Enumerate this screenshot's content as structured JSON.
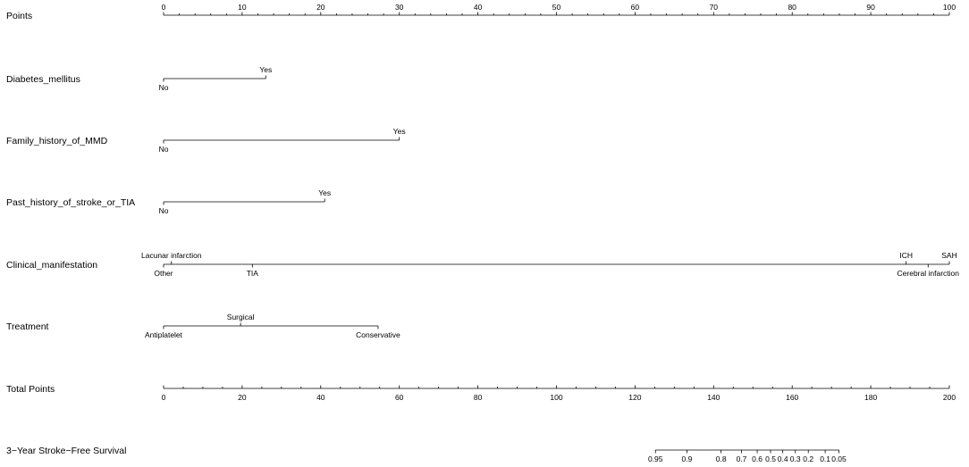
{
  "chart_data": {
    "type": "nomogram",
    "points_scale": {
      "label": "Points",
      "range": [
        0,
        100
      ],
      "tick_labels": [
        "0",
        "10",
        "20",
        "30",
        "40",
        "50",
        "60",
        "70",
        "80",
        "90",
        "100"
      ]
    },
    "variables": [
      {
        "label": "Diabetes_mellitus",
        "levels": [
          {
            "name": "No",
            "points": 0,
            "side": "below"
          },
          {
            "name": "Yes",
            "points": 13,
            "side": "above"
          }
        ]
      },
      {
        "label": "Family_history_of_MMD",
        "levels": [
          {
            "name": "No",
            "points": 0,
            "side": "below"
          },
          {
            "name": "Yes",
            "points": 30,
            "side": "above"
          }
        ]
      },
      {
        "label": "Past_history_of_stroke_or_TIA",
        "levels": [
          {
            "name": "No",
            "points": 0,
            "side": "below"
          },
          {
            "name": "Yes",
            "points": 20.5,
            "side": "above"
          }
        ]
      },
      {
        "label": "Clinical_manifestation",
        "levels": [
          {
            "name": "Other",
            "points": 0,
            "side": "below"
          },
          {
            "name": "Lacunar infarction",
            "points": 1,
            "side": "above"
          },
          {
            "name": "TIA",
            "points": 11.3,
            "side": "below"
          },
          {
            "name": "ICH",
            "points": 94.5,
            "side": "above"
          },
          {
            "name": "Cerebral infarction",
            "points": 97.3,
            "side": "below"
          },
          {
            "name": "SAH",
            "points": 100,
            "side": "above"
          }
        ]
      },
      {
        "label": "Treatment",
        "levels": [
          {
            "name": "Antiplatelet",
            "points": 0,
            "side": "below"
          },
          {
            "name": "Surgical",
            "points": 9.8,
            "side": "above"
          },
          {
            "name": "Conservative",
            "points": 27.3,
            "side": "below"
          }
        ]
      }
    ],
    "total_points": {
      "label": "Total Points",
      "range": [
        0,
        200
      ],
      "tick_labels": [
        "0",
        "20",
        "40",
        "60",
        "80",
        "100",
        "120",
        "140",
        "160",
        "180",
        "200"
      ]
    },
    "survival": {
      "label": "3−Year Stroke−Free Survival",
      "ticks": [
        {
          "label": "0.95",
          "total_points": 125.2
        },
        {
          "label": "0.9",
          "total_points": 133.2
        },
        {
          "label": "0.8",
          "total_points": 141.9
        },
        {
          "label": "0.7",
          "total_points": 147.1
        },
        {
          "label": "0.6",
          "total_points": 151.1
        },
        {
          "label": "0.5",
          "total_points": 154.5
        },
        {
          "label": "0.4",
          "total_points": 157.6
        },
        {
          "label": "0.3",
          "total_points": 160.8
        },
        {
          "label": "0.2",
          "total_points": 164.1
        },
        {
          "label": "0.1",
          "total_points": 168.4
        },
        {
          "label": "0.05",
          "total_points": 171.9
        }
      ]
    }
  }
}
